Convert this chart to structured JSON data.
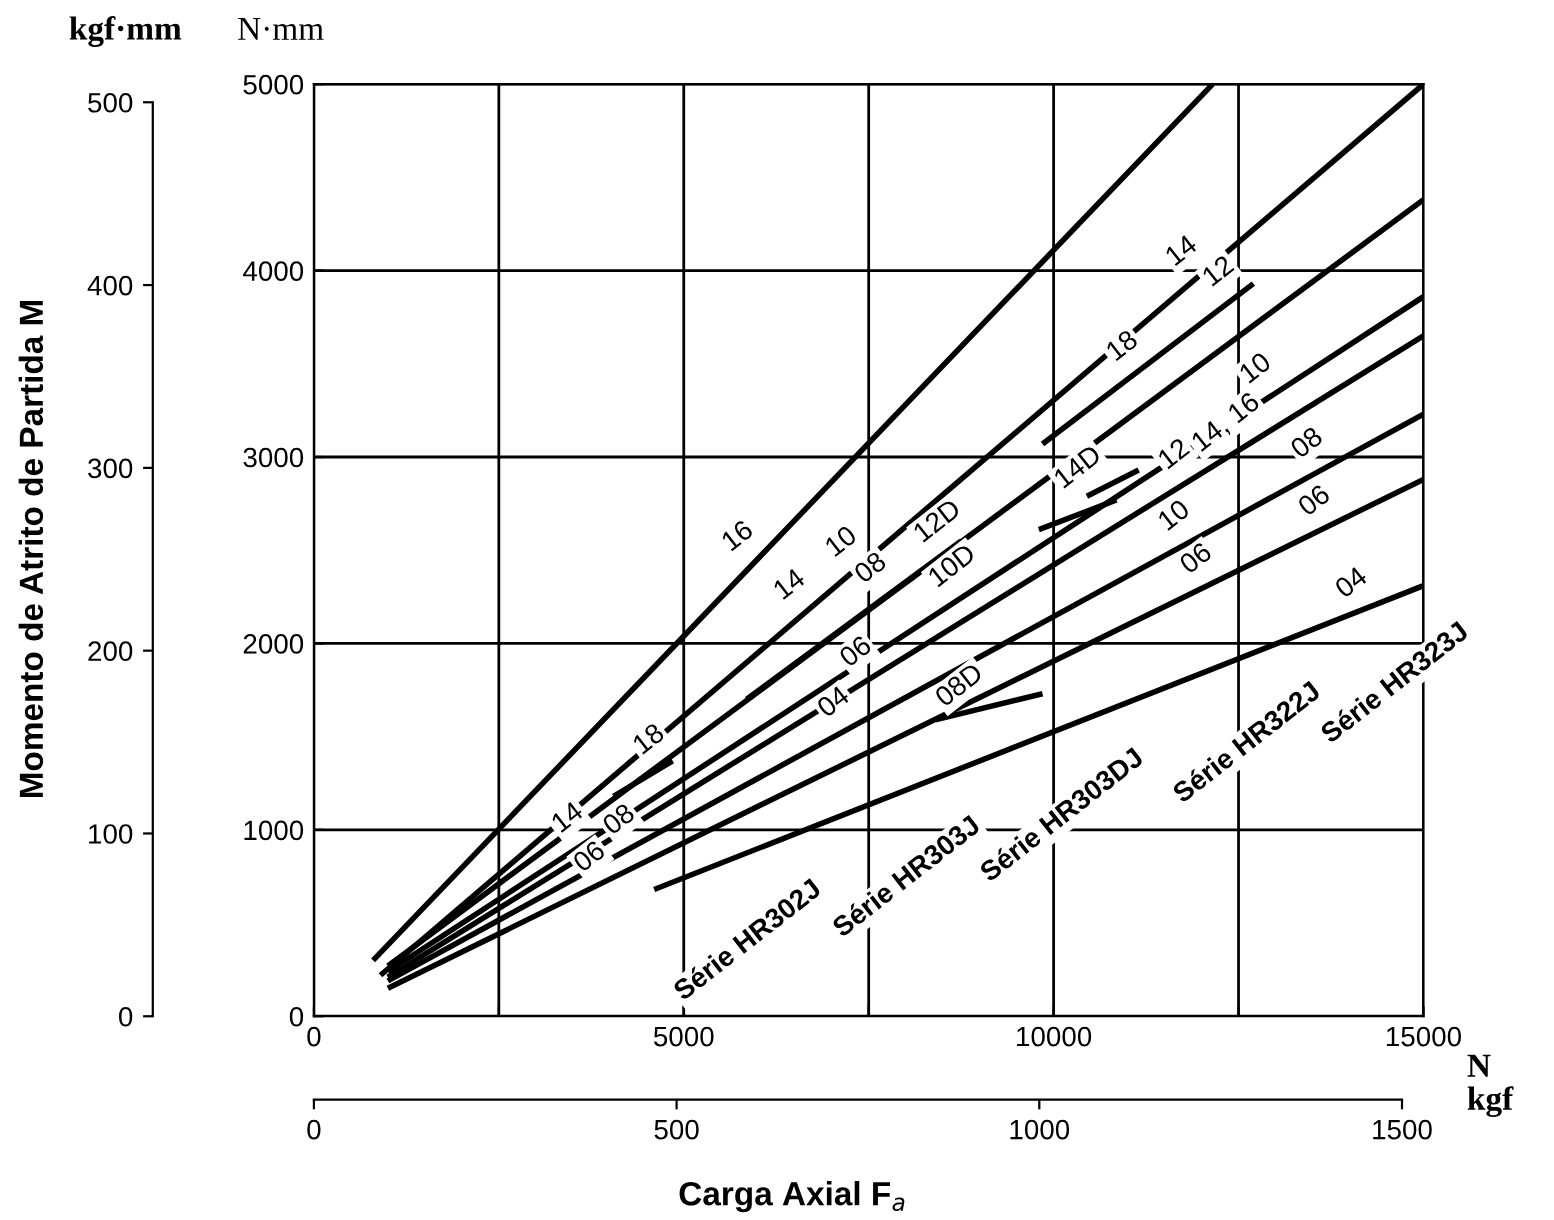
{
  "chart_data": {
    "type": "line",
    "xlabel": "N",
    "x2label": "kgf",
    "ylabel": "N·mm",
    "y2label": "kgf·mm",
    "xlim": [
      0,
      15000
    ],
    "xticks": [
      0,
      {
        "value": 2500,
        "label": null
      },
      5000,
      {
        "value": 7500,
        "label": null
      },
      10000,
      {
        "value": 12500,
        "label": null
      },
      15000
    ],
    "ylim": [
      0,
      5000
    ],
    "yticks": [
      0,
      1000,
      2000,
      3000,
      4000,
      5000
    ],
    "x2lim": [
      0,
      1529.6
    ],
    "x2ticks": [
      0,
      500,
      1000,
      1500
    ],
    "y2lim": [
      0,
      509.9
    ],
    "y2ticks": [
      0,
      100,
      200,
      300,
      400,
      500
    ],
    "grid": true,
    "line_style": "solid",
    "marker": "none",
    "series": [
      {
        "color": "#000000",
        "x": [
          800,
          12150
        ],
        "values": [
          300,
          5000
        ]
      },
      {
        "color": "#000000",
        "x": [
          900,
          15000
        ],
        "values": [
          220,
          5000
        ]
      },
      {
        "color": "#000000",
        "x": [
          1000,
          15000
        ],
        "values": [
          270,
          4380
        ]
      },
      {
        "color": "#000000",
        "x": [
          1000,
          15000
        ],
        "values": [
          240,
          3860
        ]
      },
      {
        "color": "#000000",
        "x": [
          1000,
          15000
        ],
        "values": [
          210,
          3650
        ]
      },
      {
        "color": "#000000",
        "x": [
          1000,
          15000
        ],
        "values": [
          190,
          3230
        ]
      },
      {
        "color": "#000000",
        "x": [
          1000,
          15000
        ],
        "values": [
          150,
          2880
        ]
      },
      {
        "color": "#000000",
        "x": [
          4600,
          15000
        ],
        "values": [
          680,
          2310
        ]
      },
      {
        "color": "#000000",
        "x": [
          9850,
          12700
        ],
        "values": [
          3070,
          3930
        ]
      },
      {
        "color": "#000000",
        "x": [
          10450,
          11150
        ],
        "values": [
          2790,
          2930
        ]
      },
      {
        "color": "#000000",
        "x": [
          9800,
          10850
        ],
        "values": [
          2610,
          2770
        ]
      },
      {
        "color": "#000000",
        "x": [
          8400,
          9850
        ],
        "values": [
          1590,
          1730
        ]
      },
      {
        "color": "#000000",
        "x": [
          4050,
          4850
        ],
        "values": [
          1180,
          1370
        ]
      },
      {
        "color": "#000000",
        "x": [
          5850,
          8750
        ],
        "values": [
          1700,
          2550
        ]
      }
    ],
    "annotations": [
      {
        "text": "16",
        "x": 6000,
        "y": 2450
      },
      {
        "text": "14",
        "x": 6700,
        "y": 2190
      },
      {
        "text": "14",
        "x": 12000,
        "y": 3980
      },
      {
        "text": "12",
        "x": 12500,
        "y": 3870
      },
      {
        "text": "18",
        "x": 11200,
        "y": 3470
      },
      {
        "text": "10",
        "x": 13000,
        "y": 3350
      },
      {
        "text": "14D",
        "x": 10600,
        "y": 2820
      },
      {
        "text": "14, 16",
        "x": 12600,
        "y": 3060
      },
      {
        "text": "08",
        "x": 13700,
        "y": 2950
      },
      {
        "text": "06",
        "x": 13800,
        "y": 2640
      },
      {
        "text": "12D",
        "x": 8700,
        "y": 2530
      },
      {
        "text": "10",
        "x": 7400,
        "y": 2420
      },
      {
        "text": "10D",
        "x": 8900,
        "y": 2290
      },
      {
        "text": "12",
        "x": 11900,
        "y": 2890
      },
      {
        "text": "10",
        "x": 11900,
        "y": 2560
      },
      {
        "text": "08",
        "x": 7800,
        "y": 2280
      },
      {
        "text": "06",
        "x": 7600,
        "y": 1830
      },
      {
        "text": "04",
        "x": 7300,
        "y": 1560
      },
      {
        "text": "08D",
        "x": 9000,
        "y": 1650
      },
      {
        "text": "06",
        "x": 12200,
        "y": 2330
      },
      {
        "text": "04",
        "x": 14300,
        "y": 2200
      },
      {
        "text": "18",
        "x": 4800,
        "y": 1360
      },
      {
        "text": "14",
        "x": 3700,
        "y": 940
      },
      {
        "text": "08",
        "x": 4400,
        "y": 930
      },
      {
        "text": "06",
        "x": 4000,
        "y": 730
      },
      {
        "text": "Série HR302J",
        "x": 5350,
        "y": 790
      },
      {
        "text": "Série HR303J",
        "x": 7500,
        "y": 1130
      },
      {
        "text": "Série HR303DJ",
        "x": 9600,
        "y": 1460
      },
      {
        "text": "Série HR322J",
        "x": 12100,
        "y": 1850
      },
      {
        "text": "Série HR323J",
        "x": 14100,
        "y": 2170
      },
      "Carga Axial F$_{a}$",
      "Momento de Atrito de Partida M"
    ]
  }
}
